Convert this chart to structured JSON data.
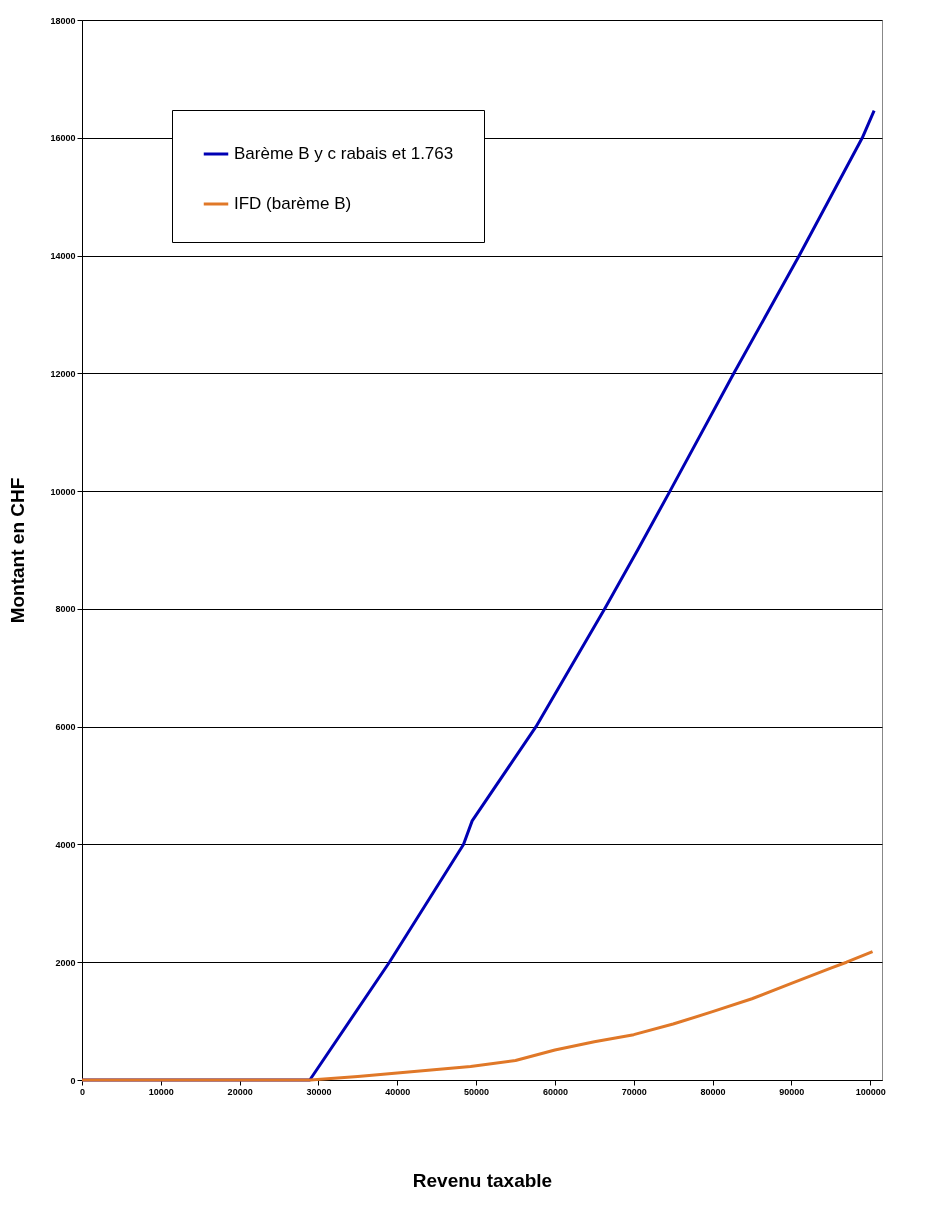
{
  "chart_data": {
    "type": "line",
    "xlabel": "Revenu taxable",
    "ylabel": "Montant en CHF",
    "xlim": [
      0,
      101500
    ],
    "xticks": [
      0,
      10000,
      20000,
      30000,
      40000,
      50000,
      60000,
      70000,
      80000,
      90000,
      100000
    ],
    "ylim": [
      0,
      18000
    ],
    "yticks": [
      0,
      2000,
      4000,
      6000,
      8000,
      10000,
      12000,
      14000,
      16000,
      18000
    ],
    "grid": "y",
    "legend": "top left",
    "series": [
      {
        "name": "Barème B y c rabais et 1.763",
        "color": "#0000b4",
        "x": [
          0,
          28900,
          39000,
          48400,
          49500,
          57600,
          66300,
          70500,
          74600,
          82700,
          91000,
          99000,
          100500
        ],
        "values": [
          0,
          0,
          2000,
          4000,
          4400,
          6000,
          8000,
          9000,
          10000,
          12000,
          14000,
          16000,
          16460
        ]
      },
      {
        "name": "IFD (barème B)",
        "color": "#e07828",
        "x": [
          0,
          29000,
          35000,
          40000,
          45000,
          49300,
          55000,
          60000,
          65000,
          70000,
          75000,
          80000,
          85000,
          90000,
          95000,
          97000,
          100300
        ],
        "values": [
          0,
          0,
          60,
          120,
          180,
          230,
          330,
          510,
          650,
          770,
          950,
          1160,
          1380,
          1640,
          1900,
          2000,
          2180
        ]
      }
    ]
  }
}
